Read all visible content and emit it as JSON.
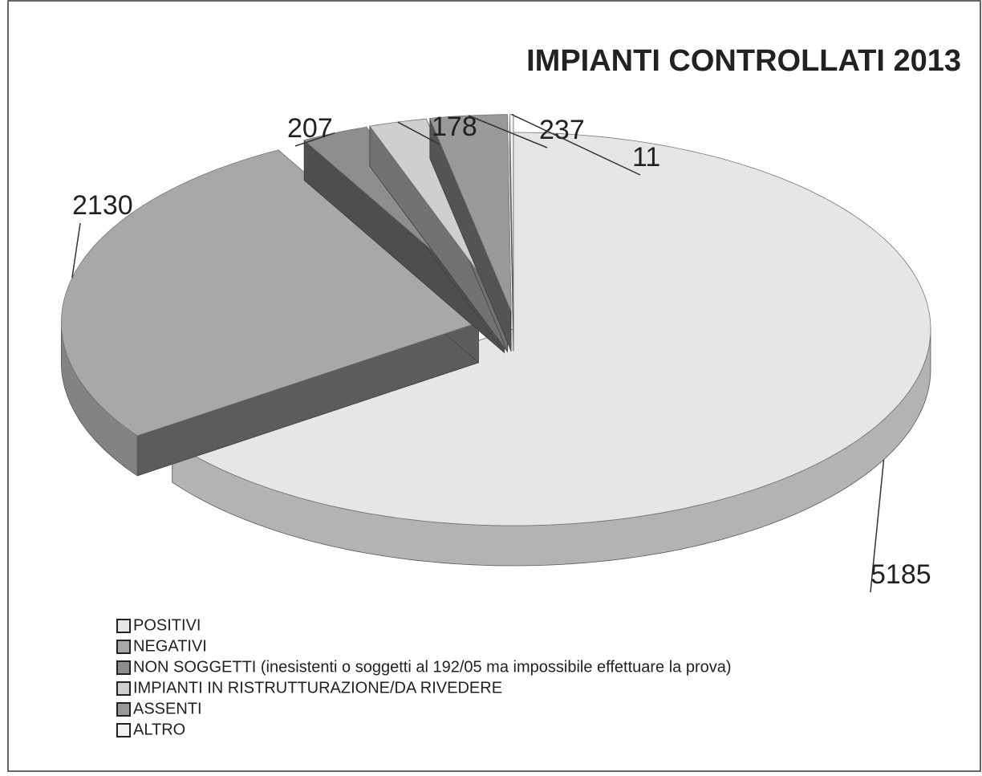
{
  "chart_data": {
    "type": "pie3d",
    "title": "IMPIANTI CONTROLLATI 2013",
    "categories": [
      "POSITIVI",
      "NEGATIVI",
      "NON SOGGETTI (inesistenti o soggetti al 192/05 ma impossibile effettuare la prova)",
      "IMPIANTI IN RISTRUTTURAZIONE/DA RIVEDERE",
      "ASSENTI",
      "ALTRO"
    ],
    "values": [
      5185,
      2130,
      207,
      178,
      237,
      11
    ],
    "colors": [
      "#e6e6e6",
      "#a8a8a8",
      "#8e8e8e",
      "#cfcfcf",
      "#999999",
      "#f2f2f2"
    ],
    "legend": "bottom-left"
  }
}
